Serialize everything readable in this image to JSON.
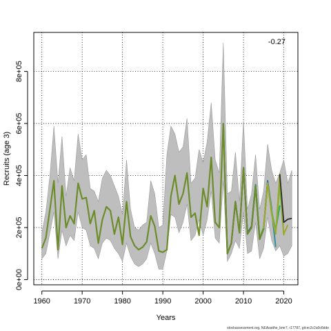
{
  "chart_data": {
    "type": "line",
    "xlabel": "Years",
    "ylabel": "Recruits (age 3)",
    "annotation": "-0.27",
    "footnote": "stockassessment.org, NEAsaithe_bmr7, r17787, git:ec2c2a0c6dde",
    "xlim": [
      1958,
      2023.5
    ],
    "ylim": [
      -20000,
      950000
    ],
    "xticks": [
      1960,
      1970,
      1980,
      1990,
      2000,
      2010,
      2020
    ],
    "yticks": [
      0,
      200000,
      400000,
      600000,
      800000
    ],
    "ytick_labels": [
      "0e+00",
      "2e+05",
      "4e+05",
      "6e+05",
      "8e+05"
    ],
    "grid": true,
    "legend": "none",
    "colors": {
      "band": "#bebebe",
      "band_stroke": "#9a9a9a",
      "peels": [
        "#2a1a6e",
        "#2e5fa8",
        "#2f8f9e",
        "#27a86a",
        "#6fbf3a",
        "#a0a72e"
      ],
      "main": "#6c8c2a",
      "recent": "#2a2a2a"
    },
    "band": {
      "x": [
        1960,
        1961,
        1962,
        1963,
        1964,
        1965,
        1966,
        1967,
        1968,
        1969,
        1970,
        1971,
        1972,
        1973,
        1974,
        1975,
        1976,
        1977,
        1978,
        1979,
        1980,
        1981,
        1982,
        1983,
        1984,
        1985,
        1986,
        1987,
        1988,
        1989,
        1990,
        1991,
        1992,
        1993,
        1994,
        1995,
        1996,
        1997,
        1998,
        1999,
        2000,
        2001,
        2002,
        2003,
        2004,
        2005,
        2006,
        2007,
        2008,
        2009,
        2010,
        2011,
        2012,
        2013,
        2014,
        2015,
        2016,
        2017,
        2018,
        2019,
        2020,
        2021,
        2022
      ],
      "upper": [
        180000,
        260000,
        400000,
        590000,
        370000,
        550000,
        320000,
        430000,
        380000,
        560000,
        460000,
        480000,
        350000,
        340000,
        300000,
        390000,
        420000,
        400000,
        360000,
        320000,
        250000,
        460000,
        270000,
        200000,
        190000,
        210000,
        220000,
        380000,
        330000,
        200000,
        210000,
        480000,
        590000,
        560000,
        490000,
        510000,
        620000,
        370000,
        390000,
        500000,
        450000,
        530000,
        680000,
        460000,
        410000,
        910000,
        330000,
        340000,
        490000,
        300000,
        610000,
        270000,
        330000,
        480000,
        270000,
        340000,
        520000,
        420000,
        370000,
        410000,
        460000,
        370000,
        420000
      ],
      "lower": [
        80000,
        100000,
        180000,
        260000,
        80000,
        190000,
        130000,
        170000,
        150000,
        260000,
        200000,
        190000,
        130000,
        120000,
        80000,
        140000,
        160000,
        150000,
        120000,
        100000,
        70000,
        140000,
        90000,
        60000,
        50000,
        60000,
        80000,
        140000,
        100000,
        40000,
        40000,
        110000,
        250000,
        240000,
        180000,
        220000,
        290000,
        150000,
        170000,
        230000,
        170000,
        230000,
        340000,
        160000,
        140000,
        380000,
        70000,
        100000,
        150000,
        120000,
        260000,
        100000,
        110000,
        220000,
        80000,
        120000,
        240000,
        150000,
        110000,
        130000,
        90000,
        100000,
        130000
      ]
    },
    "main_series": {
      "x": [
        1960,
        1961,
        1962,
        1963,
        1964,
        1965,
        1966,
        1967,
        1968,
        1969,
        1970,
        1971,
        1972,
        1973,
        1974,
        1975,
        1976,
        1977,
        1978,
        1979,
        1980,
        1981,
        1982,
        1983,
        1984,
        1985,
        1986,
        1987,
        1988,
        1989,
        1990,
        1991,
        1992,
        1993,
        1994,
        1995,
        1996,
        1997,
        1998,
        1999,
        2000,
        2001,
        2002,
        2003,
        2004,
        2005,
        2006,
        2007,
        2008,
        2009,
        2010,
        2011,
        2012,
        2013,
        2014,
        2015
      ],
      "y": [
        120000,
        160000,
        270000,
        380000,
        115000,
        360000,
        200000,
        245000,
        215000,
        370000,
        310000,
        315000,
        215000,
        265000,
        140000,
        230000,
        280000,
        265000,
        175000,
        240000,
        135000,
        300000,
        165000,
        130000,
        115000,
        125000,
        145000,
        245000,
        205000,
        110000,
        105000,
        115000,
        320000,
        400000,
        290000,
        330000,
        410000,
        240000,
        255000,
        170000,
        350000,
        280000,
        470000,
        220000,
        200000,
        600000,
        100000,
        140000,
        300000,
        180000,
        430000,
        175000,
        200000,
        360000,
        155000,
        195000
      ]
    },
    "peels": [
      {
        "x": [
          2005,
          2006,
          2007,
          2008,
          2009,
          2010,
          2011,
          2012,
          2013,
          2014,
          2015,
          2016
        ],
        "y": [
          600000,
          100000,
          140000,
          300000,
          180000,
          430000,
          175000,
          200000,
          360000,
          155000,
          195000,
          375000
        ]
      },
      {
        "x": [
          2010,
          2011,
          2012,
          2013,
          2014,
          2015,
          2016,
          2017
        ],
        "y": [
          430000,
          180000,
          205000,
          365000,
          160000,
          200000,
          380000,
          270000
        ]
      },
      {
        "x": [
          2012,
          2013,
          2014,
          2015,
          2016,
          2017,
          2018
        ],
        "y": [
          205000,
          365000,
          160000,
          200000,
          375000,
          265000,
          125000
        ]
      },
      {
        "x": [
          2013,
          2014,
          2015,
          2016,
          2017,
          2018,
          2019
        ],
        "y": [
          365000,
          160000,
          200000,
          370000,
          260000,
          190000,
          285000
        ]
      },
      {
        "x": [
          2014,
          2015,
          2016,
          2017,
          2018,
          2019,
          2020
        ],
        "y": [
          160000,
          200000,
          370000,
          255000,
          180000,
          360000,
          170000
        ]
      },
      {
        "x": [
          2015,
          2016,
          2017,
          2018,
          2019,
          2020,
          2021
        ],
        "y": [
          200000,
          370000,
          250000,
          175000,
          405000,
          175000,
          210000
        ]
      }
    ],
    "recent_series": {
      "x": [
        2019,
        2020,
        2021,
        2022
      ],
      "y": [
        405000,
        220000,
        232000,
        235000
      ]
    }
  }
}
